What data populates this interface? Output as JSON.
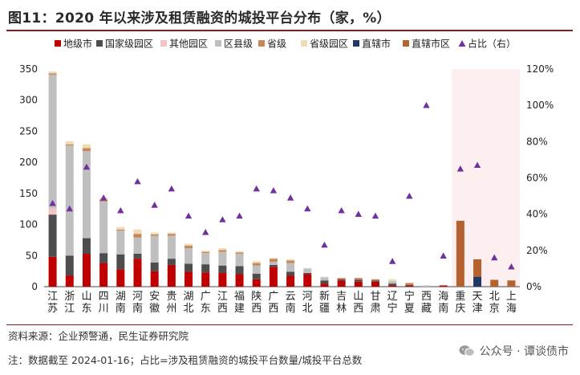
{
  "title": "图11：2020 年以来涉及租赁融资的城投平台分布（家，%）",
  "footer": {
    "source": "资料来源：企业预警通，民生证券研究院",
    "note": "注：数据截至 2024-01-16；占比=涉及租赁融资的城投平台数量/城投平台总数"
  },
  "watermark": {
    "text": "公众号 · 谭谈债市",
    "icon": "wechat-icon"
  },
  "colors": {
    "地级市": "#c00000",
    "国家级园区": "#4d4d4d",
    "其他园区": "#f2c4c4",
    "区县级": "#bfbfbf",
    "省级": "#c8865a",
    "省级园区": "#f0dcb4",
    "直辖市": "#1f3864",
    "直辖市区": "#b5622e",
    "占比": "#7030a0",
    "highlight": "#fdeff0"
  },
  "chart_data": {
    "type": "bar",
    "stacked": true,
    "categories": [
      "江苏",
      "浙江",
      "山东",
      "四川",
      "湖南",
      "河南",
      "安徽",
      "贵州",
      "湖北",
      "广东",
      "江西",
      "福建",
      "陕西",
      "广西",
      "云南",
      "河北",
      "新疆",
      "吉林",
      "山西",
      "甘肃",
      "辽宁",
      "宁夏",
      "西藏",
      "海南",
      "重庆",
      "天津",
      "北京",
      "上海"
    ],
    "series": [
      {
        "name": "地级市",
        "values": [
          48,
          18,
          53,
          38,
          28,
          45,
          25,
          35,
          24,
          23,
          22,
          20,
          12,
          32,
          18,
          20,
          5,
          10,
          8,
          8,
          2,
          2,
          0,
          2,
          0,
          0,
          0,
          0
        ]
      },
      {
        "name": "国家级园区",
        "values": [
          68,
          32,
          25,
          16,
          24,
          8,
          14,
          10,
          13,
          13,
          12,
          13,
          9,
          3,
          6,
          2,
          5,
          2,
          3,
          2,
          3,
          1,
          0,
          0,
          0,
          0,
          0,
          0
        ]
      },
      {
        "name": "其他园区",
        "values": [
          10,
          0,
          0,
          0,
          0,
          0,
          0,
          0,
          0,
          0,
          0,
          0,
          0,
          0,
          0,
          0,
          0,
          0,
          0,
          0,
          0,
          0,
          0,
          0,
          0,
          0,
          0,
          0
        ]
      },
      {
        "name": "区县级",
        "values": [
          215,
          177,
          140,
          83,
          38,
          26,
          43,
          37,
          25,
          18,
          22,
          20,
          13,
          5,
          14,
          7,
          5,
          0,
          0,
          0,
          4,
          0,
          2,
          0,
          0,
          0,
          0,
          0
        ]
      },
      {
        "name": "省级",
        "values": [
          2,
          2,
          5,
          3,
          2,
          6,
          2,
          3,
          4,
          2,
          3,
          2,
          4,
          5,
          4,
          0,
          0,
          2,
          3,
          2,
          0,
          3,
          0,
          0,
          0,
          0,
          0,
          0
        ]
      },
      {
        "name": "省级园区",
        "values": [
          3,
          5,
          6,
          3,
          4,
          7,
          3,
          2,
          3,
          2,
          3,
          2,
          3,
          1,
          2,
          1,
          1,
          0,
          0,
          0,
          3,
          0,
          0,
          0,
          0,
          0,
          0,
          0
        ]
      },
      {
        "name": "直辖市",
        "values": [
          0,
          0,
          0,
          0,
          0,
          0,
          0,
          0,
          0,
          0,
          0,
          0,
          0,
          0,
          0,
          0,
          0,
          0,
          0,
          0,
          0,
          0,
          0,
          0,
          0,
          16,
          0,
          0
        ]
      },
      {
        "name": "直辖市区",
        "values": [
          0,
          0,
          0,
          0,
          0,
          0,
          0,
          0,
          0,
          0,
          0,
          0,
          0,
          0,
          0,
          0,
          0,
          0,
          0,
          0,
          0,
          0,
          0,
          0,
          106,
          28,
          11,
          10
        ]
      }
    ],
    "line_series": {
      "name": "占比（右）",
      "marker": "triangle",
      "values": [
        46,
        43,
        66,
        49,
        42,
        58,
        45,
        54,
        39,
        30,
        37,
        39,
        54,
        53,
        49,
        43,
        23,
        42,
        40,
        39,
        14,
        50,
        100,
        17,
        65,
        67,
        16,
        11
      ]
    },
    "y_left": {
      "min": 0,
      "max": 350,
      "ticks": [
        0,
        50,
        100,
        150,
        200,
        250,
        300,
        350
      ]
    },
    "y_right": {
      "min": 0,
      "max": 120,
      "ticks": [
        "0%",
        "20%",
        "40%",
        "60%",
        "80%",
        "100%",
        "120%"
      ],
      "tick_values": [
        0,
        20,
        40,
        60,
        80,
        100,
        120
      ]
    },
    "highlight_categories": [
      "重庆",
      "天津",
      "北京",
      "上海"
    ],
    "legend_position": "top",
    "legend": [
      "地级市",
      "国家级园区",
      "其他园区",
      "区县级",
      "省级",
      "省级园区",
      "直辖市",
      "直辖市区",
      "占比（右）"
    ],
    "grid": false
  }
}
